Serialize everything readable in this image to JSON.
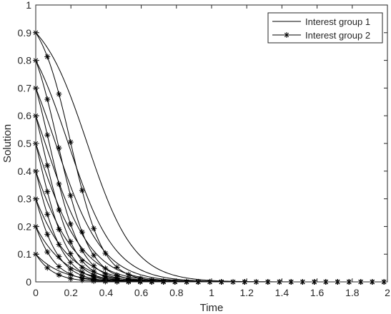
{
  "chart_data": {
    "type": "line",
    "title": "",
    "xlabel": "Time",
    "ylabel": "Solution",
    "xlim": [
      0,
      2
    ],
    "ylim": [
      0,
      1
    ],
    "xticks": [
      "0",
      "0.2",
      "0.4",
      "0.6",
      "0.8",
      "1",
      "1.2",
      "1.4",
      "1.6",
      "1.8",
      "2"
    ],
    "yticks": [
      "0",
      "0.1",
      "0.2",
      "0.3",
      "0.4",
      "0.5",
      "0.6",
      "0.7",
      "0.8",
      "0.9",
      "1"
    ],
    "grid": false,
    "legend_position": "top-right",
    "line_color": "#000000",
    "legend": [
      {
        "label": "Interest group 1",
        "style": "solid"
      },
      {
        "label": "Interest group 2",
        "style": "asterisk"
      }
    ],
    "series": [
      {
        "name": "Interest group 1",
        "style": "solid",
        "initial_values": [
          0.1,
          0.2,
          0.3,
          0.4,
          0.5,
          0.6,
          0.7,
          0.8,
          0.9
        ]
      },
      {
        "name": "Interest group 2",
        "style": "asterisk",
        "initial_values": [
          0.1,
          0.2,
          0.3,
          0.4,
          0.5,
          0.6,
          0.7,
          0.8,
          0.9
        ]
      }
    ]
  }
}
